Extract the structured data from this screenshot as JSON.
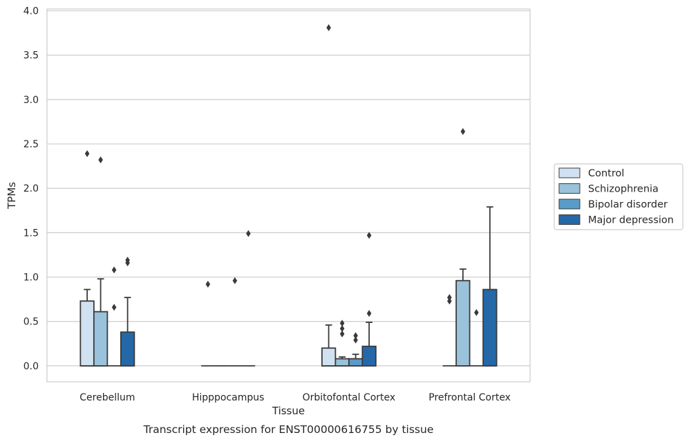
{
  "caption": "Transcript expression for ENST00000616755 by tissue",
  "chart_data": {
    "type": "box",
    "xlabel": "Tissue",
    "ylabel": "TPMs",
    "ylim": [
      -0.18,
      4.02
    ],
    "yticks": [
      0.0,
      0.5,
      1.0,
      1.5,
      2.0,
      2.5,
      3.0,
      3.5,
      4.0
    ],
    "ytick_labels": [
      "0.0",
      "0.5",
      "1.0",
      "1.5",
      "2.0",
      "2.5",
      "3.0",
      "3.5",
      "4.0"
    ],
    "grid": "horizontal",
    "legend_position": "right",
    "categories": [
      "Cerebellum",
      "Hipppocampus",
      "Orbitofontal Cortex",
      "Prefrontal Cortex"
    ],
    "series": [
      {
        "name": "Control",
        "color": "#d0e2f1",
        "boxes": [
          {
            "q1": 0.0,
            "median": 0.0,
            "q3": 0.73,
            "whisker_low": 0.0,
            "whisker_high": 0.86,
            "outliers": [
              2.39
            ]
          },
          {
            "q1": 0.0,
            "median": 0.0,
            "q3": 0.0,
            "whisker_low": 0.0,
            "whisker_high": 0.0,
            "outliers": [
              0.92
            ]
          },
          {
            "q1": 0.0,
            "median": 0.0,
            "q3": 0.2,
            "whisker_low": 0.0,
            "whisker_high": 0.46,
            "outliers": [
              3.81
            ]
          },
          {
            "q1": 0.0,
            "median": 0.0,
            "q3": 0.0,
            "whisker_low": 0.0,
            "whisker_high": 0.0,
            "outliers": [
              0.73,
              0.77
            ]
          }
        ]
      },
      {
        "name": "Schizophrenia",
        "color": "#9ac2da",
        "boxes": [
          {
            "q1": 0.0,
            "median": 0.0,
            "q3": 0.61,
            "whisker_low": 0.0,
            "whisker_high": 0.98,
            "outliers": [
              2.32
            ]
          },
          {
            "q1": 0.0,
            "median": 0.0,
            "q3": 0.0,
            "whisker_low": 0.0,
            "whisker_high": 0.0,
            "outliers": []
          },
          {
            "q1": 0.0,
            "median": 0.0,
            "q3": 0.08,
            "whisker_low": 0.0,
            "whisker_high": 0.1,
            "outliers": [
              0.36,
              0.42,
              0.48
            ]
          },
          {
            "q1": 0.0,
            "median": 0.0,
            "q3": 0.96,
            "whisker_low": 0.0,
            "whisker_high": 1.09,
            "outliers": [
              2.64
            ]
          }
        ]
      },
      {
        "name": "Bipolar disorder",
        "color": "#5a9bc8",
        "boxes": [
          {
            "q1": 0.0,
            "median": 0.0,
            "q3": 0.0,
            "whisker_low": 0.0,
            "whisker_high": 0.0,
            "outliers": [
              0.66,
              1.08
            ]
          },
          {
            "q1": 0.0,
            "median": 0.0,
            "q3": 0.0,
            "whisker_low": 0.0,
            "whisker_high": 0.0,
            "outliers": [
              0.96
            ]
          },
          {
            "q1": 0.0,
            "median": 0.0,
            "q3": 0.08,
            "whisker_low": 0.0,
            "whisker_high": 0.13,
            "outliers": [
              0.29,
              0.34
            ]
          },
          {
            "q1": 0.0,
            "median": 0.0,
            "q3": 0.0,
            "whisker_low": 0.0,
            "whisker_high": 0.0,
            "outliers": [
              0.6
            ]
          }
        ]
      },
      {
        "name": "Major depression",
        "color": "#2468a8",
        "boxes": [
          {
            "q1": 0.0,
            "median": 0.0,
            "q3": 0.38,
            "whisker_low": 0.0,
            "whisker_high": 0.77,
            "outliers": [
              1.16,
              1.19
            ]
          },
          {
            "q1": 0.0,
            "median": 0.0,
            "q3": 0.0,
            "whisker_low": 0.0,
            "whisker_high": 0.0,
            "outliers": [
              1.49
            ]
          },
          {
            "q1": 0.0,
            "median": 0.0,
            "q3": 0.22,
            "whisker_low": 0.0,
            "whisker_high": 0.49,
            "outliers": [
              0.59,
              1.47
            ]
          },
          {
            "q1": 0.0,
            "median": 0.0,
            "q3": 0.86,
            "whisker_low": 0.0,
            "whisker_high": 1.79,
            "outliers": []
          }
        ]
      }
    ]
  }
}
